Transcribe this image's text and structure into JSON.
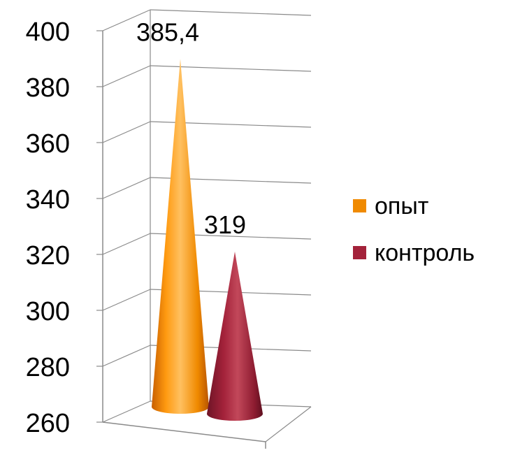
{
  "chart_data": {
    "type": "bar",
    "style": "3d-cone",
    "categories": [
      ""
    ],
    "series": [
      {
        "name": "опыт",
        "values": [
          385.4
        ],
        "color": "#f08a00",
        "value_label": "385,4"
      },
      {
        "name": "контроль",
        "values": [
          319
        ],
        "color": "#a3223a",
        "value_label": "319"
      }
    ],
    "ylim": [
      260,
      400
    ],
    "yticks": [
      260,
      280,
      300,
      320,
      340,
      360,
      380,
      400
    ],
    "ytick_labels": [
      "260",
      "280",
      "300",
      "320",
      "340",
      "360",
      "380",
      "400"
    ],
    "title": "",
    "xlabel": "",
    "ylabel": "",
    "grid": true,
    "legend": {
      "position": "right",
      "entries": [
        "опыт",
        "контроль"
      ]
    }
  }
}
